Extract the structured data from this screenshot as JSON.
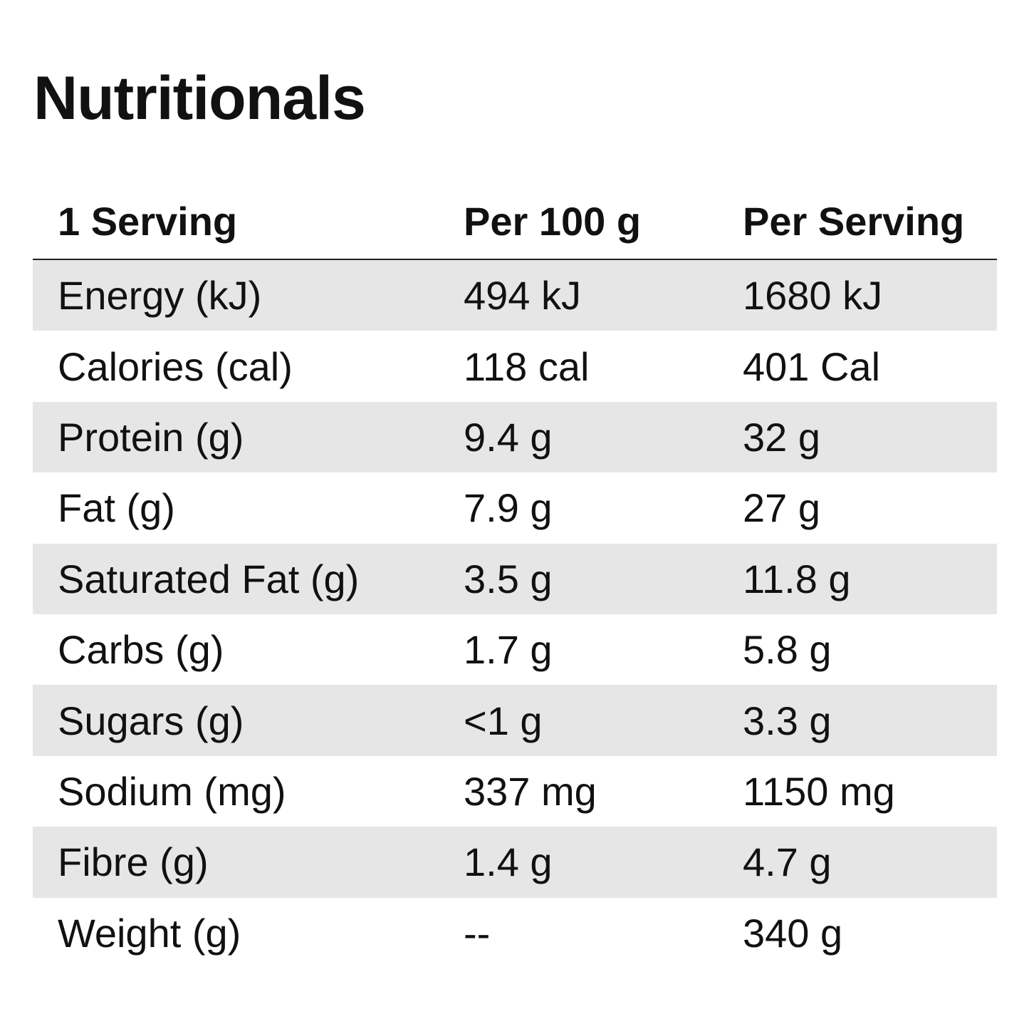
{
  "title": "Nutritionals",
  "table": {
    "headers": [
      "1 Serving",
      "Per 100 g",
      "Per Serving"
    ],
    "rows": [
      {
        "nutrient": "Energy (kJ)",
        "per100": "494 kJ",
        "perServing": "1680 kJ"
      },
      {
        "nutrient": "Calories (cal)",
        "per100": "118 cal",
        "perServing": "401 Cal"
      },
      {
        "nutrient": "Protein (g)",
        "per100": "9.4 g",
        "perServing": "32 g"
      },
      {
        "nutrient": "Fat (g)",
        "per100": "7.9 g",
        "perServing": "27 g"
      },
      {
        "nutrient": "Saturated Fat (g)",
        "per100": "3.5 g",
        "perServing": "11.8 g"
      },
      {
        "nutrient": "Carbs (g)",
        "per100": "1.7 g",
        "perServing": "5.8 g"
      },
      {
        "nutrient": "Sugars (g)",
        "per100": "<1 g",
        "perServing": "3.3 g"
      },
      {
        "nutrient": "Sodium (mg)",
        "per100": "337 mg",
        "perServing": "1150 mg"
      },
      {
        "nutrient": "Fibre (g)",
        "per100": "1.4 g",
        "perServing": "4.7 g"
      },
      {
        "nutrient": "Weight (g)",
        "per100": "--",
        "perServing": "340 g"
      }
    ]
  },
  "colors": {
    "text": "#111111",
    "shaded_row": "#e6e6e6",
    "background": "#ffffff",
    "rule": "#222222"
  }
}
